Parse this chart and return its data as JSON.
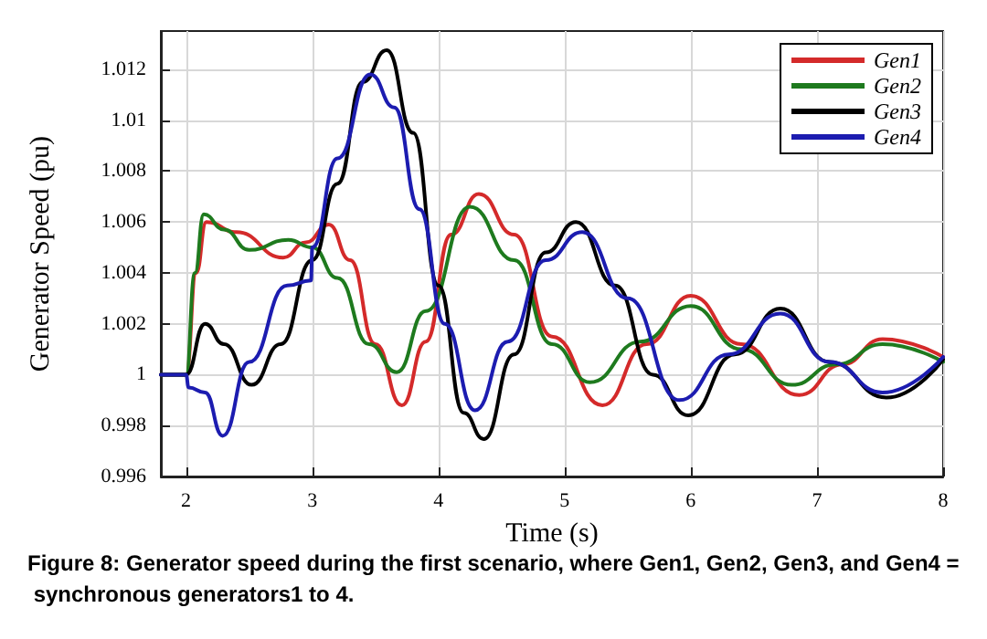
{
  "chart_data": {
    "type": "line",
    "xlabel": "Time (s)",
    "ylabel": "Generator Speed (pu)",
    "annotations": [
      "Figure 8: Generator speed during the first scenario, where Gen1, Gen2, Gen3, and Gen4 = synchronous generators1 to 4."
    ],
    "xlim": [
      1.8,
      8
    ],
    "xticks": [
      2,
      3,
      4,
      5,
      6,
      7,
      8
    ],
    "ylim": [
      0.996,
      1.0135
    ],
    "yticks": [
      0.996,
      0.998,
      1,
      1.002,
      1.004,
      1.006,
      1.008,
      1.01,
      1.012
    ],
    "grid": true,
    "legend": "top right",
    "marker": "none",
    "line_style": "solid",
    "series": [
      {
        "name": "Gen1",
        "color": "#d42a2a",
        "x": [
          1.8,
          2.0,
          2.08,
          2.16,
          2.4,
          2.77,
          2.95,
          3.13,
          3.3,
          3.5,
          3.71,
          3.9,
          4.1,
          4.32,
          4.6,
          4.9,
          5.3,
          5.65,
          6.0,
          6.4,
          6.86,
          7.2,
          7.52,
          8
        ],
        "values": [
          1.0,
          1.0,
          1.004,
          1.006,
          1.0056,
          1.0046,
          1.0052,
          1.0059,
          1.0045,
          1.0012,
          0.9988,
          1.0013,
          1.0055,
          1.0071,
          1.0055,
          1.0015,
          0.9988,
          1.0012,
          1.0031,
          1.0012,
          0.9992,
          1.0004,
          1.0014,
          1.0007
        ]
      },
      {
        "name": "Gen2",
        "color": "#1e7a1e",
        "x": [
          1.8,
          2.0,
          2.07,
          2.14,
          2.3,
          2.5,
          2.81,
          3.0,
          3.2,
          3.45,
          3.67,
          3.9,
          4.25,
          4.6,
          4.9,
          5.2,
          5.6,
          6.0,
          6.4,
          6.8,
          7.15,
          7.52,
          8
        ],
        "values": [
          1.0,
          1.0,
          1.004,
          1.0063,
          1.0057,
          1.0049,
          1.0053,
          1.005,
          1.0038,
          1.0012,
          1.0001,
          1.0025,
          1.0066,
          1.0045,
          1.0012,
          0.9997,
          1.0013,
          1.0027,
          1.001,
          0.9996,
          1.0004,
          1.0012,
          1.0005
        ]
      },
      {
        "name": "Gen3",
        "color": "#000000",
        "x": [
          1.8,
          2.0,
          2.15,
          2.3,
          2.52,
          2.75,
          3.0,
          3.2,
          3.4,
          3.59,
          3.8,
          4.0,
          4.2,
          4.36,
          4.6,
          4.85,
          5.09,
          5.4,
          5.7,
          5.98,
          6.35,
          6.71,
          7.1,
          7.55,
          8
        ],
        "values": [
          1.0,
          1.0,
          1.002,
          1.0012,
          0.9996,
          1.0012,
          1.0045,
          1.0075,
          1.0115,
          1.01275,
          1.0095,
          1.0035,
          0.9985,
          0.99747,
          1.0008,
          1.0048,
          1.006,
          1.0035,
          1.0,
          0.9984,
          1.0008,
          1.0026,
          1.0005,
          0.9991,
          1.0006
        ]
      },
      {
        "name": "Gen4",
        "color": "#1c1cb0",
        "x": [
          1.8,
          2.0,
          2.02,
          2.15,
          2.29,
          2.5,
          2.8,
          2.99,
          3.0,
          3.2,
          3.46,
          3.65,
          3.85,
          4.05,
          4.29,
          4.55,
          4.85,
          5.14,
          5.5,
          5.91,
          6.3,
          6.71,
          7.1,
          7.52,
          8
        ],
        "values": [
          1.0,
          1.0,
          0.9995,
          0.9993,
          0.9976,
          1.0005,
          1.0035,
          1.0037,
          1.005,
          1.0085,
          1.0118,
          1.0105,
          1.0065,
          1.002,
          0.9986,
          1.0013,
          1.0045,
          1.0056,
          1.003,
          0.999,
          1.0008,
          1.0024,
          1.0005,
          0.9993,
          1.0007
        ]
      }
    ]
  }
}
